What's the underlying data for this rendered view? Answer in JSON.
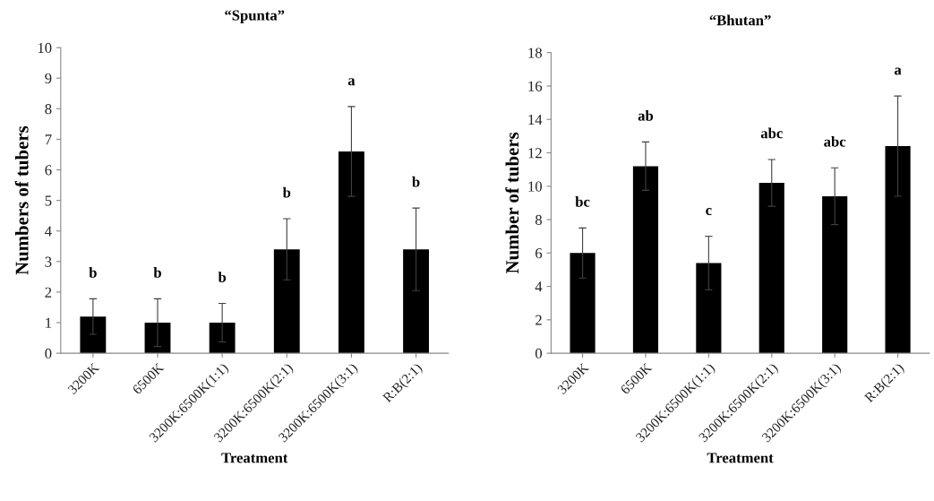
{
  "chart_data": [
    {
      "type": "bar",
      "title": "“Spunta”",
      "xlabel": "Treatment",
      "ylabel": "Numbers of tubers",
      "categories": [
        "3200K",
        "6500K",
        "3200K:6500K(1:1)",
        "3200K:6500K(2:1)",
        "3200K:6500K(3:1)",
        "R:B(2:1)"
      ],
      "values": [
        1.2,
        1.0,
        1.0,
        3.4,
        6.6,
        3.4
      ],
      "errors": [
        0.58,
        0.78,
        0.63,
        1.0,
        1.47,
        1.35
      ],
      "color": "#000000",
      "ylim": [
        0,
        10
      ],
      "yticks": [
        0,
        1,
        2,
        3,
        4,
        5,
        6,
        7,
        8,
        9,
        10
      ],
      "grid": false,
      "legend": false,
      "annotations": [
        "b",
        "b",
        "b",
        "b",
        "a",
        "b"
      ]
    },
    {
      "type": "bar",
      "title": "“Bhutan”",
      "xlabel": "Treatment",
      "ylabel": "Number of tubers",
      "categories": [
        "3200K",
        "6500K",
        "3200K:6500K(1:1)",
        "3200K:6500K(2:1)",
        "3200K:6500K(3:1)",
        "R:B(2:1)"
      ],
      "values": [
        6.0,
        11.2,
        5.4,
        10.2,
        9.4,
        12.4
      ],
      "errors": [
        1.5,
        1.45,
        1.6,
        1.4,
        1.7,
        3.0
      ],
      "color": "#000000",
      "ylim": [
        0,
        18
      ],
      "yticks": [
        0,
        2,
        4,
        6,
        8,
        10,
        12,
        14,
        16,
        18
      ],
      "grid": false,
      "legend": false,
      "annotations": [
        "bc",
        "ab",
        "c",
        "abc",
        "abc",
        "a"
      ]
    }
  ]
}
